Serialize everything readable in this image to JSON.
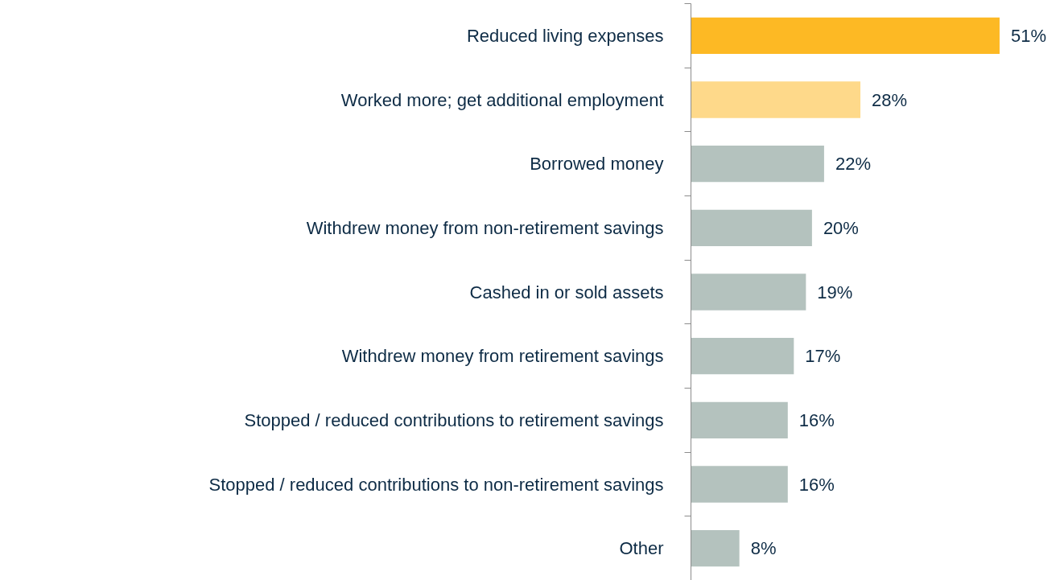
{
  "chart_data": {
    "type": "bar",
    "orientation": "horizontal",
    "categories": [
      "Reduced living expenses",
      "Worked more; get additional employment",
      "Borrowed money",
      "Withdrew money from non-retirement savings",
      "Cashed in or sold assets",
      "Withdrew money from retirement savings",
      "Stopped / reduced contributions to retirement savings",
      "Stopped / reduced contributions to non-retirement savings",
      "Other"
    ],
    "values": [
      51,
      28,
      22,
      20,
      19,
      17,
      16,
      16,
      8
    ],
    "value_labels": [
      "51%",
      "28%",
      "22%",
      "20%",
      "19%",
      "17%",
      "16%",
      "16%",
      "8%"
    ],
    "colors": [
      "#fdb924",
      "#fed98a",
      "#b4c2be",
      "#b4c2be",
      "#b4c2be",
      "#b4c2be",
      "#b4c2be",
      "#b4c2be",
      "#b4c2be"
    ],
    "tick_labels": "y",
    "grid": false
  }
}
